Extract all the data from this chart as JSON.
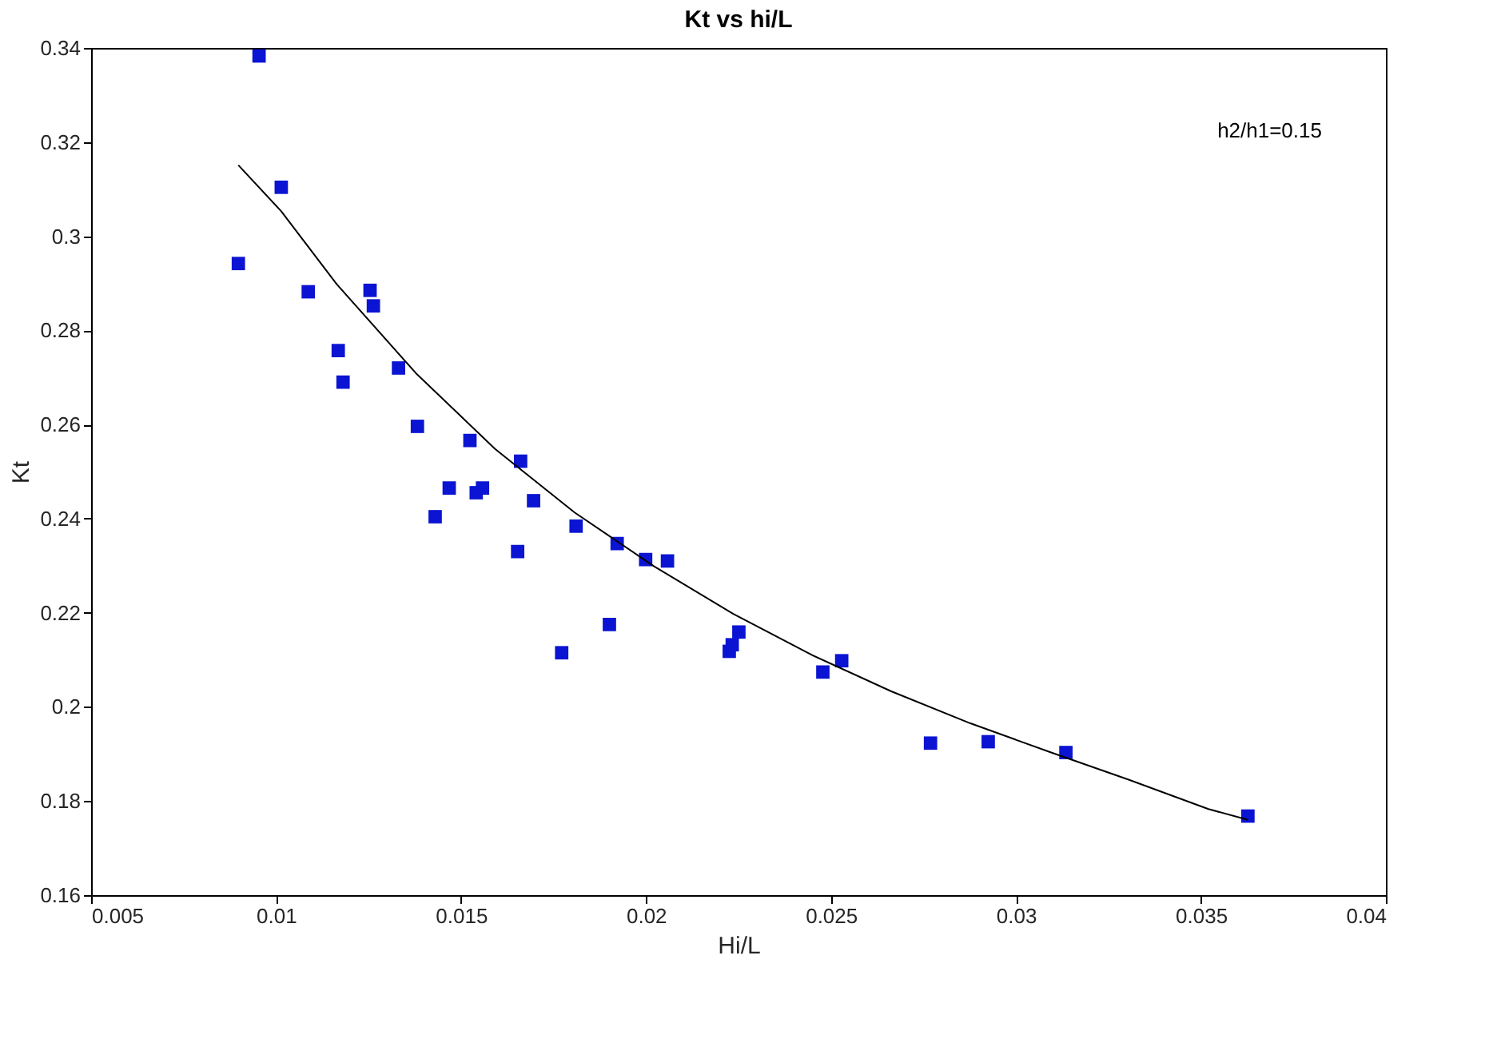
{
  "chart_data": {
    "type": "scatter",
    "title": "Kt vs hi/L",
    "xlabel": "Hi/L",
    "ylabel": "Kt",
    "annotations": [
      "h2/h1=0.15"
    ],
    "xlim": [
      0.005,
      0.04
    ],
    "xticks": [
      0.005,
      0.01,
      0.015,
      0.02,
      0.025,
      0.03,
      0.035,
      0.04
    ],
    "ylim": [
      0.16,
      0.34
    ],
    "yticks": [
      0.16,
      0.18,
      0.2,
      0.22,
      0.24,
      0.26,
      0.28,
      0.3,
      0.32,
      0.34
    ],
    "grid": false,
    "series": [
      {
        "color": "#0a14d2",
        "marker": "square",
        "x": [
          0.00898,
          0.00954,
          0.01014,
          0.01087,
          0.01168,
          0.01181,
          0.01254,
          0.01263,
          0.01331,
          0.01382,
          0.0143,
          0.01468,
          0.01524,
          0.01541,
          0.01558,
          0.01661,
          0.01653,
          0.01696,
          0.01772,
          0.01811,
          0.01901,
          0.01922,
          0.01999,
          0.02058,
          0.02225,
          0.02233,
          0.02251,
          0.02478,
          0.02529,
          0.02769,
          0.02925,
          0.03135,
          0.03627
        ],
        "values": [
          0.2942,
          0.3383,
          0.3104,
          0.2882,
          0.2757,
          0.269,
          0.2885,
          0.2852,
          0.272,
          0.2596,
          0.2404,
          0.2465,
          0.2566,
          0.2455,
          0.2465,
          0.2522,
          0.233,
          0.2438,
          0.2115,
          0.2384,
          0.2175,
          0.2347,
          0.2313,
          0.231,
          0.2118,
          0.2132,
          0.2159,
          0.2074,
          0.2098,
          0.1923,
          0.1926,
          0.1903,
          0.1768
        ]
      },
      {
        "type": "line",
        "color": "#000000",
        "line_style": "solid",
        "marker": "none",
        "x": [
          0.00898,
          0.01014,
          0.01164,
          0.01378,
          0.01592,
          0.01807,
          0.02021,
          0.02235,
          0.02449,
          0.02663,
          0.02877,
          0.03092,
          0.03306,
          0.0352,
          0.03627
        ],
        "values": [
          0.3151,
          0.3053,
          0.2898,
          0.2709,
          0.2548,
          0.2413,
          0.2299,
          0.2198,
          0.211,
          0.2033,
          0.1965,
          0.1904,
          0.1845,
          0.1783,
          0.176
        ]
      }
    ]
  }
}
